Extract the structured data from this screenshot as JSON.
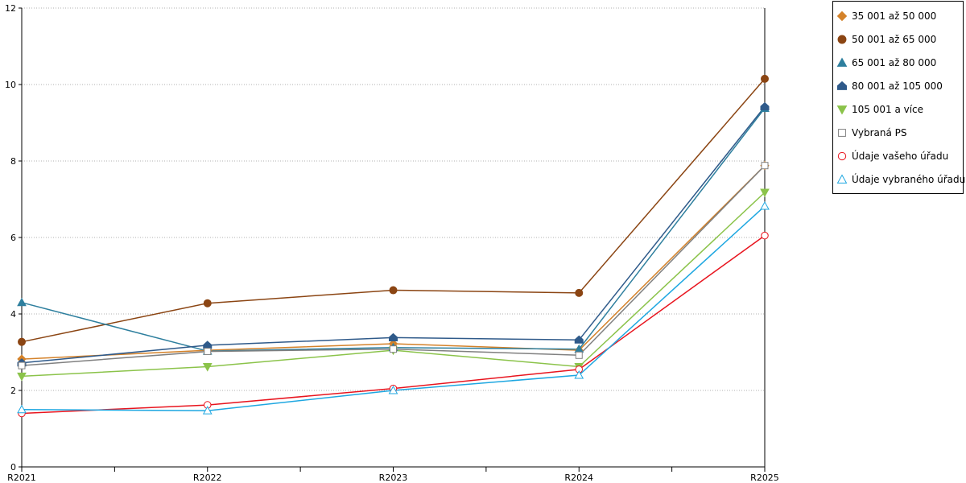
{
  "chart_data": {
    "type": "line",
    "x": [
      "R2021",
      "R2022",
      "R2023",
      "R2024",
      "R2025"
    ],
    "ylim": [
      0,
      12
    ],
    "yticks": [
      0,
      2,
      4,
      6,
      8,
      10,
      12
    ],
    "grid": "horizontal-dotted",
    "legend_position": "right",
    "series": [
      {
        "name": "35 001 až 50 000",
        "color": "#d4822a",
        "marker": "diamond-filled",
        "values": [
          2.82,
          3.05,
          3.22,
          3.05,
          7.88
        ]
      },
      {
        "name": "50 001 až 65 000",
        "color": "#8b4513",
        "marker": "circle-filled",
        "values": [
          3.27,
          4.28,
          4.62,
          4.55,
          10.15
        ]
      },
      {
        "name": "65 001 až 80 000",
        "color": "#2e7f9e",
        "marker": "triangle-up-filled",
        "values": [
          4.3,
          3.03,
          3.12,
          3.08,
          9.38
        ]
      },
      {
        "name": "80 001 až 105 000",
        "color": "#2f5a8a",
        "marker": "house-filled",
        "values": [
          2.72,
          3.18,
          3.38,
          3.32,
          9.42
        ]
      },
      {
        "name": "105 001 a více",
        "color": "#8bc34a",
        "marker": "triangle-down-filled",
        "values": [
          2.37,
          2.62,
          3.05,
          2.62,
          7.18
        ]
      },
      {
        "name": "Vybraná PS",
        "color": "#808080",
        "marker": "square-open",
        "values": [
          2.65,
          3.02,
          3.08,
          2.92,
          7.88
        ]
      },
      {
        "name": "Údaje vašeho úřadu",
        "color": "#e8141e",
        "marker": "circle-open",
        "values": [
          1.4,
          1.62,
          2.05,
          2.55,
          6.05
        ]
      },
      {
        "name": "Údaje vybraného úřadu",
        "color": "#1ea7e1",
        "marker": "triangle-up-open",
        "values": [
          1.5,
          1.47,
          2.0,
          2.4,
          6.82
        ]
      }
    ]
  }
}
